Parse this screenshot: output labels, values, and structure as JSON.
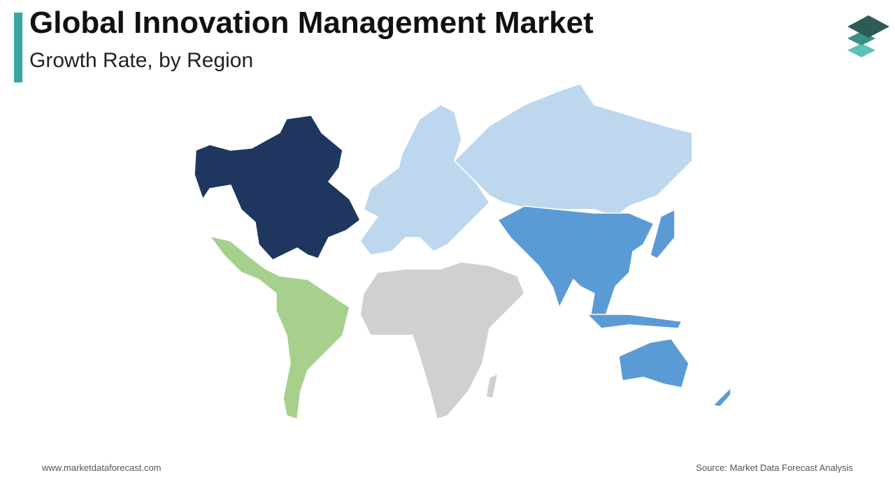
{
  "header": {
    "title": "Global Innovation Management Market",
    "subtitle": "Growth Rate, by Region"
  },
  "footer": {
    "website": "www.marketdataforecast.com",
    "source": "Source: Market Data Forecast Analysis"
  }
}
